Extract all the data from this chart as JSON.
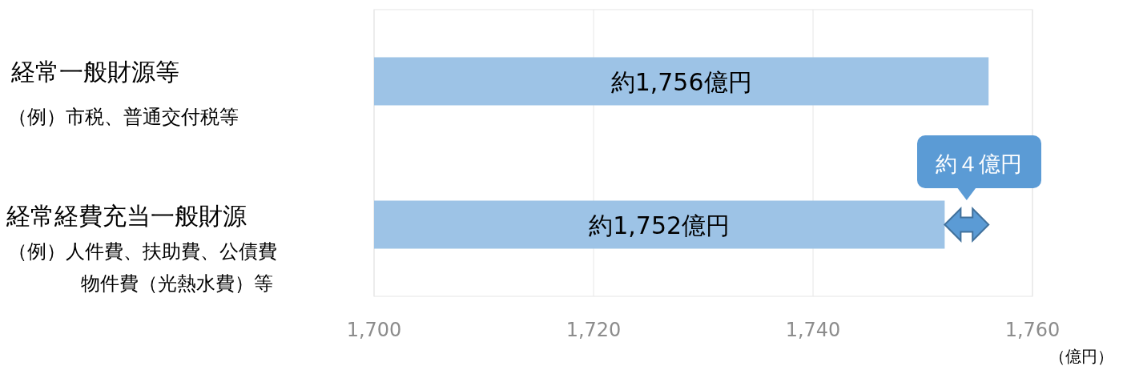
{
  "chart_data": {
    "type": "bar",
    "orientation": "horizontal",
    "categories": [
      "経常一般財源等",
      "経常経費充当一般財源"
    ],
    "values": [
      1756,
      1752
    ],
    "color": "#9dc3e6",
    "value_labels": [
      "約1,756億円",
      "約1,752億円"
    ],
    "xlim": [
      1700,
      1760
    ],
    "xticks": [
      {
        "value": 1700,
        "label": "1,700"
      },
      {
        "value": 1720,
        "label": "1,720"
      },
      {
        "value": 1740,
        "label": "1,740"
      },
      {
        "value": 1760,
        "label": "1,760"
      }
    ],
    "xlabel": "（億円）",
    "grid": "x",
    "annotations": [
      "（例）市税、普通交付税等",
      "（例）人件費、扶助費、公債費",
      "物件費（光熱水費）等",
      "約４億円"
    ]
  }
}
